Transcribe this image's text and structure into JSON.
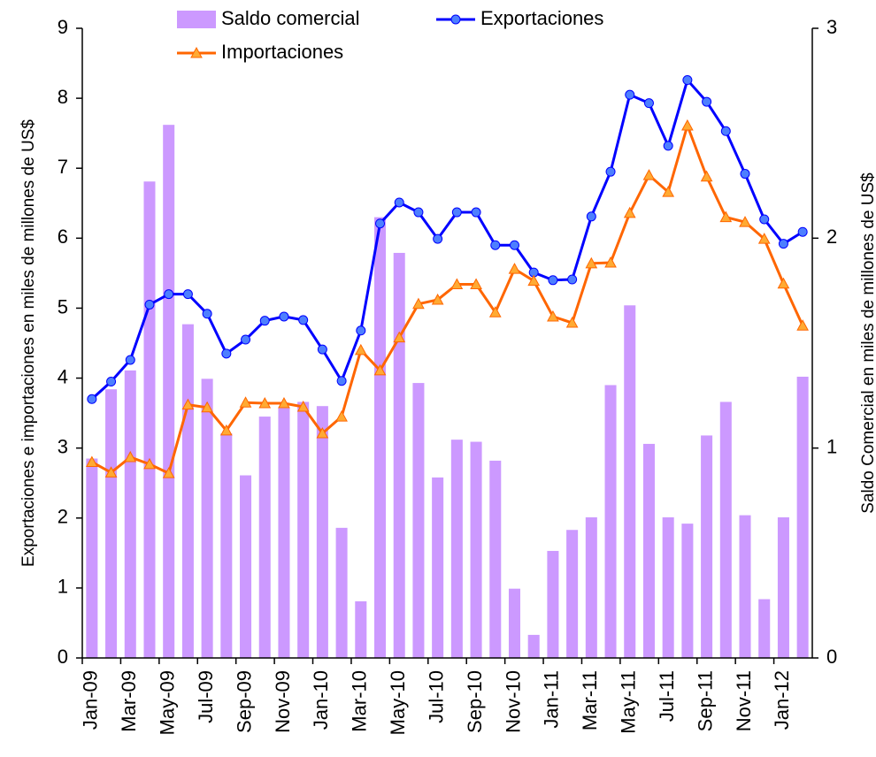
{
  "chart_data": {
    "type": "combo",
    "y_label": "Exportaciones e importaciones en miles de millones de US$",
    "y2_label": "Saldo Comercial en miles de millones de US$",
    "categories": [
      "Jan-09",
      null,
      "Mar-09",
      null,
      "May-09",
      null,
      "Jul-09",
      null,
      "Sep-09",
      null,
      "Nov-09",
      null,
      "Jan-10",
      null,
      "Mar-10",
      null,
      "May-10",
      null,
      "Jul-10",
      null,
      "Sep-10",
      null,
      "Nov-10",
      null,
      "Jan-11",
      null,
      "Mar-11",
      null,
      "May-11",
      null,
      "Jul-11",
      null,
      "Sep-11",
      null,
      "Nov-11",
      null,
      "Jan-12",
      null
    ],
    "series": [
      {
        "name": "Saldo comercial",
        "type": "bar",
        "axis": "y2",
        "color": "#cc99ff",
        "values": [
          0.95,
          1.28,
          1.37,
          2.27,
          2.54,
          1.59,
          1.33,
          1.07,
          0.87,
          1.15,
          1.19,
          1.22,
          1.2,
          0.62,
          0.27,
          2.1,
          1.93,
          1.31,
          0.86,
          1.04,
          1.03,
          0.94,
          0.33,
          0.11,
          0.51,
          0.61,
          0.67,
          1.3,
          1.68,
          1.02,
          0.67,
          0.64,
          1.06,
          1.22,
          0.68,
          0.28,
          0.67,
          1.34
        ]
      },
      {
        "name": "Exportaciones",
        "type": "line",
        "marker": "circle",
        "color": "#0000ff",
        "marker_color": "#4d7fff",
        "values": [
          3.7,
          3.95,
          4.26,
          5.05,
          5.2,
          5.2,
          4.92,
          4.35,
          4.55,
          4.82,
          4.88,
          4.83,
          4.41,
          3.96,
          4.68,
          6.21,
          6.51,
          6.37,
          5.99,
          6.37,
          6.37,
          5.9,
          5.9,
          5.51,
          5.4,
          5.41,
          6.31,
          6.95,
          8.05,
          7.93,
          7.32,
          8.26,
          7.95,
          7.53,
          6.92,
          6.27,
          5.92,
          6.09
        ]
      },
      {
        "name": "Importaciones",
        "type": "line",
        "marker": "triangle",
        "color": "#ff6600",
        "marker_color": "#ffaa33",
        "values": [
          2.8,
          2.65,
          2.87,
          2.77,
          2.64,
          3.62,
          3.58,
          3.25,
          3.65,
          3.64,
          3.64,
          3.59,
          3.21,
          3.45,
          4.4,
          4.11,
          4.58,
          5.06,
          5.12,
          5.34,
          5.34,
          4.94,
          5.56,
          5.39,
          4.88,
          4.79,
          5.64,
          5.65,
          6.36,
          6.9,
          6.66,
          7.61,
          6.88,
          6.3,
          6.23,
          5.99,
          5.35,
          4.75
        ]
      }
    ],
    "ylim": [
      0,
      9
    ],
    "yticks": [
      0,
      1,
      2,
      3,
      4,
      5,
      6,
      7,
      8,
      9
    ],
    "y2lim": [
      0,
      3
    ],
    "y2ticks": [
      0,
      1,
      2,
      3
    ],
    "grid": false,
    "legend": "top"
  }
}
